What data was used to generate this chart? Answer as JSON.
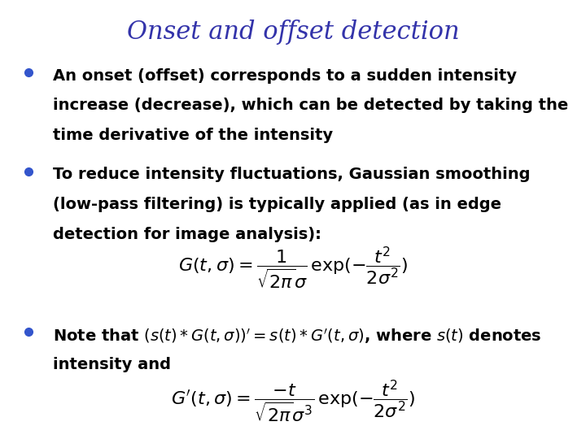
{
  "title": "Onset and offset detection",
  "title_color": "#3333aa",
  "title_fontsize": 22,
  "background_color": "#ffffff",
  "bullet_color": "#3355cc",
  "text_color": "#000000",
  "bullet1_line1": "An onset (offset) corresponds to a sudden intensity",
  "bullet1_line2": "increase (decrease), which can be detected by taking the",
  "bullet1_line3": "time derivative of the intensity",
  "bullet2_line1": "To reduce intensity fluctuations, Gaussian smoothing",
  "bullet2_line2": "(low-pass filtering) is typically applied (as in edge",
  "bullet2_line3": "detection for image analysis):",
  "formula1": "$G(t,\\sigma) = \\dfrac{1}{\\sqrt{2\\pi}\\sigma}\\,\\mathrm{exp}(-\\dfrac{t^2}{2\\sigma^2})$",
  "bullet3_line1_prefix": "Note that ",
  "bullet3_formula_inline": "$(s(t)*G(t,\\sigma))^{\\prime} = s(t)*G^{\\prime}(t,\\sigma)$",
  "bullet3_line1_suffix": ", where $s(t)$ denotes",
  "bullet3_line2": "intensity and",
  "formula2": "$G^{\\prime}(t,\\sigma) = \\dfrac{-t}{\\sqrt{2\\pi}\\sigma^3}\\,\\mathrm{exp}(-\\dfrac{t^2}{2\\sigma^2})$",
  "text_fontsize": 14,
  "formula_fontsize": 16,
  "inline_formula_fontsize": 13
}
